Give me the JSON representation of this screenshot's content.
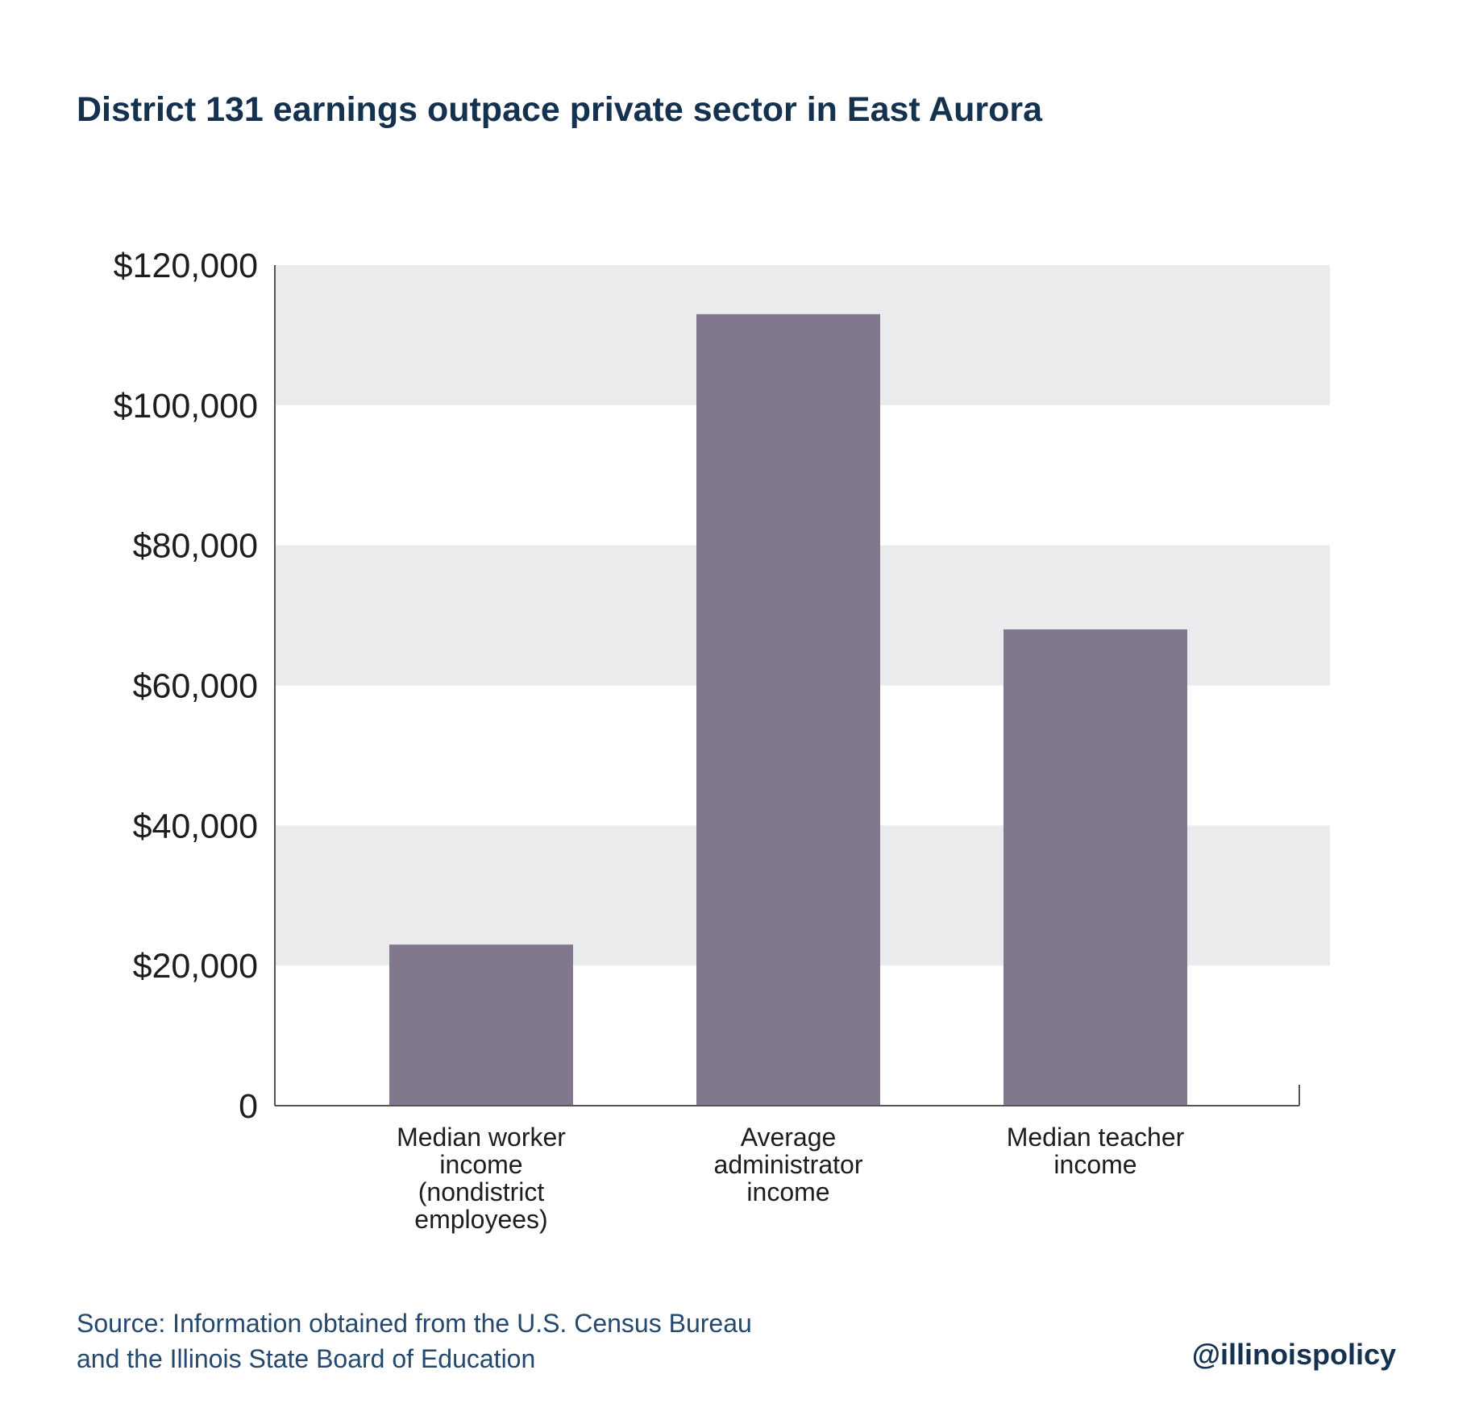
{
  "title": "District 131 earnings outpace private sector in East Aurora",
  "source": "Source: Information obtained from the U.S. Census Bureau and the Illinois State Board of Education",
  "handle": "@illinoispolicy",
  "colors": {
    "bar": "#81788d",
    "band": "#eaebed",
    "axis": "#555555",
    "title": "#14314f",
    "source": "#24486e"
  },
  "chart_data": {
    "type": "bar",
    "title": "District 131 earnings outpace private sector in East Aurora",
    "xlabel": "",
    "ylabel": "",
    "categories": [
      [
        "Median worker",
        "income",
        "(nondistrict",
        "employees)"
      ],
      [
        "Average",
        "administrator",
        "income"
      ],
      [
        "Median teacher",
        "income"
      ]
    ],
    "values": [
      23000,
      113000,
      68000
    ],
    "ylim": [
      0,
      120000
    ],
    "yticks": [
      0,
      20000,
      40000,
      60000,
      80000,
      100000,
      120000
    ],
    "ytick_labels": [
      "0",
      "$20,000",
      "$40,000",
      "$60,000",
      "$80,000",
      "$100,000",
      "$120,000"
    ],
    "grid": "alternating horizontal bands",
    "legend": "none"
  }
}
